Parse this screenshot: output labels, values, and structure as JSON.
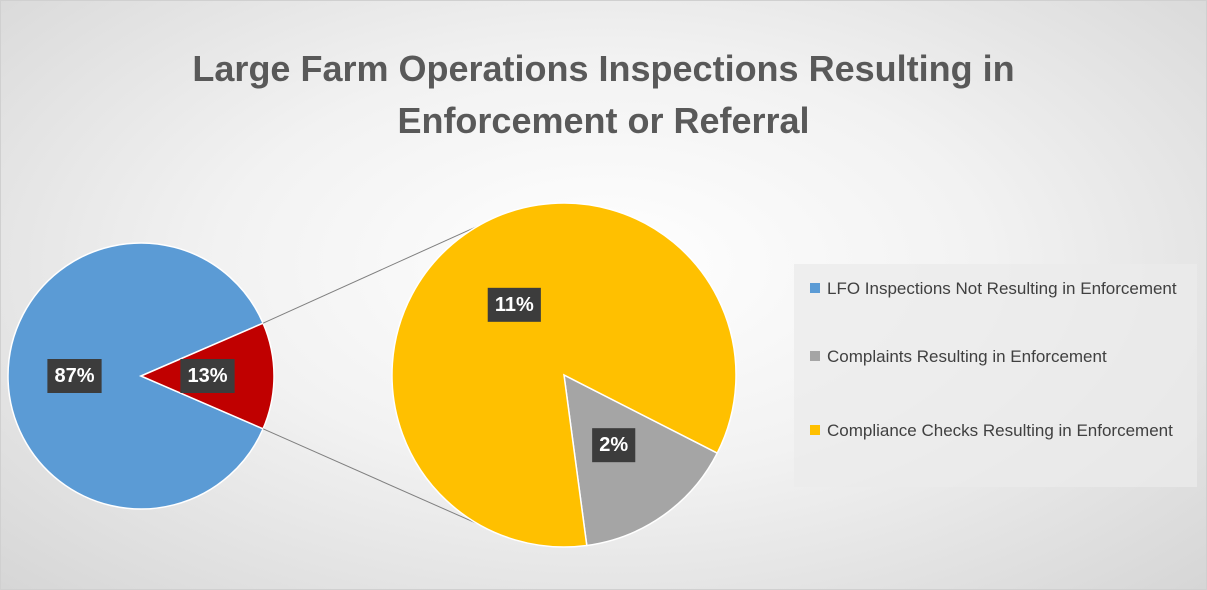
{
  "chart_data": {
    "type": "pie",
    "title": "Large Farm Operations Inspections Resulting in Enforcement or Referral",
    "categories": [
      "LFO Inspections Not Resulting in Enforcement",
      "Complaints Resulting in Enforcement",
      "Compliance Checks Resulting in Enforcement"
    ],
    "values": [
      87,
      2,
      11
    ],
    "value_labels": [
      "87%",
      "2%",
      "11%"
    ],
    "colors": [
      "#5b9bd5",
      "#a5a5a5",
      "#ffc000"
    ],
    "combined": {
      "value": 13,
      "value_label": "13%",
      "color": "#c00000"
    },
    "legend": "right"
  }
}
